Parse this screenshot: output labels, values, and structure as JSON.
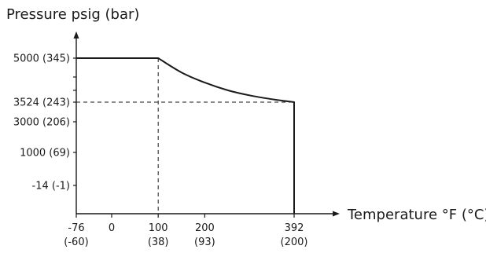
{
  "chart_data": {
    "type": "line",
    "ylabel": "Pressure psig (bar)",
    "xlabel": "Temperature °F (°C)",
    "x_range": [
      -76,
      392
    ],
    "x_ticks": [
      {
        "value": -76,
        "line1": "-76",
        "line2": "(-60)"
      },
      {
        "value": 0,
        "line1": "0",
        "line2": ""
      },
      {
        "value": 100,
        "line1": "100",
        "line2": "(38)"
      },
      {
        "value": 200,
        "line1": "200",
        "line2": "(93)"
      },
      {
        "value": 392,
        "line1": "392",
        "line2": "(200)"
      }
    ],
    "y_ticks": [
      {
        "label": "5000 (345)",
        "value": 5000
      },
      {
        "label": "3524 (243)",
        "value": 3524
      },
      {
        "label": "3000 (206)",
        "value": 3000
      },
      {
        "label": "1000 (69)",
        "value": 1000
      },
      {
        "label": "-14 (-1)",
        "value": -14
      }
    ],
    "series": [
      {
        "points": [
          {
            "x": -76,
            "y": 5000
          },
          {
            "x": 100,
            "y": 5000
          },
          {
            "x": 150,
            "y": 4520
          },
          {
            "x": 200,
            "y": 4180
          },
          {
            "x": 250,
            "y": 3920
          },
          {
            "x": 300,
            "y": 3740
          },
          {
            "x": 350,
            "y": 3610
          },
          {
            "x": 392,
            "y": 3524
          },
          {
            "x": 392,
            "y": -14
          }
        ]
      }
    ],
    "reference_lines": [
      {
        "orientation": "vertical",
        "x": 100,
        "from_y": 5000,
        "style": "dashed"
      },
      {
        "orientation": "horizontal",
        "y": 3524,
        "from_x": -76,
        "to_x": 392,
        "style": "dashed"
      }
    ],
    "grid": false,
    "legend": "none",
    "colors": {
      "line": "#1a1a1a",
      "axis": "#1a1a1a",
      "text": "#1a1a1a"
    }
  }
}
